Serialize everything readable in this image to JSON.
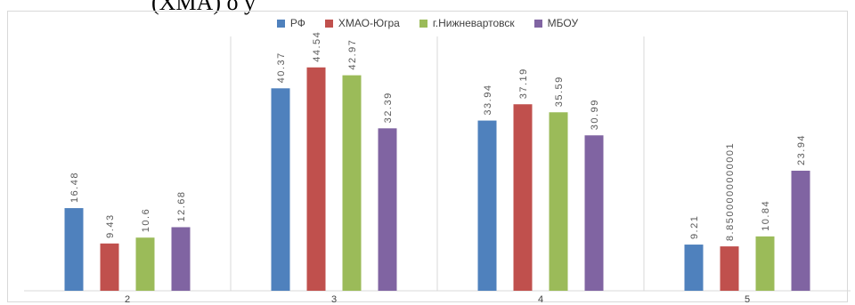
{
  "page": {
    "heading_fragment": "(ХМА) о у"
  },
  "chart_data": {
    "type": "bar",
    "categories": [
      "2",
      "3",
      "4",
      "5"
    ],
    "series": [
      {
        "name": "РФ",
        "values": [
          16.48,
          40.37,
          33.94,
          9.21
        ],
        "labels": [
          "16.48",
          "40.37",
          "33.94",
          "9.21"
        ]
      },
      {
        "name": "ХМАО-Югра",
        "values": [
          9.43,
          44.54,
          37.19,
          8.85
        ],
        "labels": [
          "9.43",
          "44.54",
          "37.19",
          "8.8500000000001"
        ]
      },
      {
        "name": "г.Нижневартовск",
        "values": [
          10.6,
          42.97,
          35.59,
          10.84
        ],
        "labels": [
          "10.6",
          "42.97",
          "35.59",
          "10.84"
        ]
      },
      {
        "name": "МБОУ",
        "values": [
          12.68,
          32.39,
          30.99,
          23.94
        ],
        "labels": [
          "12.68",
          "32.39",
          "30.99",
          "23.94"
        ]
      }
    ],
    "colors": [
      "#4f81bd",
      "#c0504d",
      "#9bbb59",
      "#8064a2"
    ],
    "ylim": [
      0,
      50
    ],
    "grid": false,
    "legend_position": "top",
    "title": "",
    "xlabel": "",
    "ylabel": ""
  }
}
